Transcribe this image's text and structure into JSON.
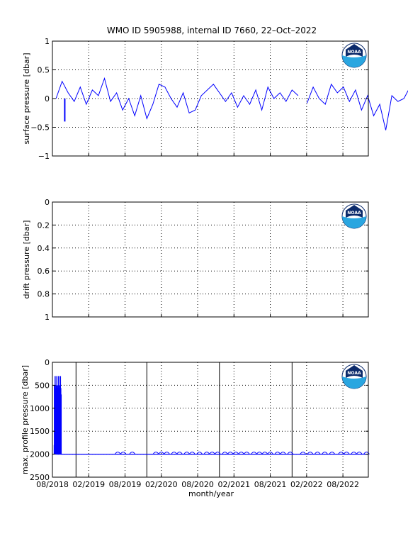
{
  "chart_title": "WMO ID 5905988, internal ID 7660, 22–Oct–2022",
  "x_axis": {
    "label": "month/year",
    "tick_labels": [
      "08/2018",
      "02/2019",
      "08/2019",
      "02/2020",
      "08/2020",
      "02/2021",
      "08/2021",
      "02/2022",
      "08/2022"
    ]
  },
  "logo": {
    "text": "NOAA",
    "icon": "noaa-logo-icon"
  },
  "colors": {
    "series": "#0000ff",
    "axis": "#000000",
    "grid": "#000000",
    "logo_blue": "#0a4aa6",
    "logo_cyan": "#2aa6e0",
    "logo_navy": "#0b2a6b"
  },
  "chart_data": [
    {
      "type": "line",
      "ylabel": "surface pressure [dbar]",
      "ylim": [
        -1,
        1
      ],
      "yticks": [
        1,
        0.5,
        0,
        -0.5,
        -1
      ],
      "y_tick_labels": [
        "1",
        "0.5",
        "0",
        "−0.5",
        "−1"
      ],
      "y_reversed": false,
      "grid": true,
      "series": [
        {
          "t_start": 0.1,
          "t_step": 0.5,
          "segments": [
            [
              0.0,
              0.3,
              0.1,
              -0.05,
              0.2,
              -0.1,
              0.15,
              0.05,
              0.35,
              -0.05,
              0.1,
              -0.2,
              0.0,
              -0.3,
              0.05,
              -0.35,
              -0.1,
              0.25,
              0.2,
              0.0,
              -0.15,
              0.1,
              -0.25,
              -0.2,
              0.05,
              0.15,
              0.25,
              0.1,
              -0.05,
              0.1,
              -0.15,
              0.05,
              -0.1,
              0.15,
              -0.2,
              0.2,
              0.0,
              0.1,
              -0.05,
              0.15,
              0.05
            ],
            [
              -0.08,
              0.2,
              0.0,
              -0.1,
              0.25,
              0.1,
              0.2,
              -0.05,
              0.15,
              -0.2,
              0.05,
              -0.3,
              -0.1,
              -0.55,
              0.05,
              -0.05,
              0.0,
              0.2,
              -0.15,
              0.15,
              0.1,
              -0.1,
              0.25,
              -0.05,
              0.15,
              -0.1,
              0.1,
              0.0,
              -0.05,
              0.05,
              0.15,
              -0.05,
              0.1,
              0.2,
              -0.1,
              0.05,
              0.0,
              0.25,
              0.1,
              -0.2,
              0.05,
              -0.35,
              0.1,
              -0.15,
              0.0,
              0.05,
              0.2,
              -0.15,
              0.0,
              0.05
            ],
            [
              0.0,
              0.1,
              -0.05,
              0.3,
              0.4,
              0.1,
              0.2,
              -0.1,
              0.1,
              0.25,
              0.05,
              -0.05,
              0.15,
              0.1,
              0.0,
              -0.1,
              0.05,
              0.3,
              -0.35,
              0.05,
              0.2,
              0.0,
              -0.15,
              0.1,
              0.25,
              0.05,
              0.15,
              -0.1,
              0.05,
              0.3,
              0.1,
              0.0,
              -0.05,
              0.2,
              0.15,
              0.35,
              0.05,
              -0.1,
              0.05,
              0.15,
              0.0,
              0.1,
              0.05,
              0.05
            ]
          ]
        }
      ]
    },
    {
      "type": "line",
      "ylabel": "drift pressure [dbar]",
      "ylim": [
        0,
        1
      ],
      "yticks": [
        0,
        0.2,
        0.4,
        0.6,
        0.8,
        1
      ],
      "y_tick_labels": [
        "0",
        "0.2",
        "0.4",
        "0.6",
        "0.8",
        "1"
      ],
      "y_reversed": true,
      "grid": true,
      "series": []
    },
    {
      "type": "line",
      "ylabel": "max. profile pressure [dbar]",
      "ylim": [
        0,
        2500
      ],
      "yticks": [
        0,
        500,
        1000,
        1500,
        2000,
        2500
      ],
      "y_tick_labels": [
        "0",
        "500",
        "1000",
        "1500",
        "2000",
        "2500"
      ],
      "y_reversed": true,
      "grid": true,
      "cycle_boundaries": [
        0.65,
        2.6,
        4.6,
        6.6
      ],
      "series": [
        {
          "spikes": {
            "t_start": 0.05,
            "t_step": 0.015,
            "count": 40,
            "base": 2000,
            "tops": [
              1800,
              500,
              2000,
              560,
              900,
              300,
              1200,
              560,
              2000,
              700
            ]
          },
          "baseline": {
            "value": 2000,
            "t_start": 0.1,
            "t_end": 8.7
          },
          "bumps": [
            1.8,
            1.95,
            2.2,
            2.85,
            3.0,
            3.15,
            3.35,
            3.5,
            3.7,
            3.85,
            4.05,
            4.25,
            4.4,
            4.55,
            4.75,
            4.9,
            5.05,
            5.2,
            5.35,
            5.55,
            5.7,
            5.85,
            6.0,
            6.2,
            6.35,
            6.55,
            6.9,
            7.1,
            7.3,
            7.5,
            7.7,
            7.95,
            8.1,
            8.3,
            8.45,
            8.65
          ]
        }
      ]
    }
  ]
}
